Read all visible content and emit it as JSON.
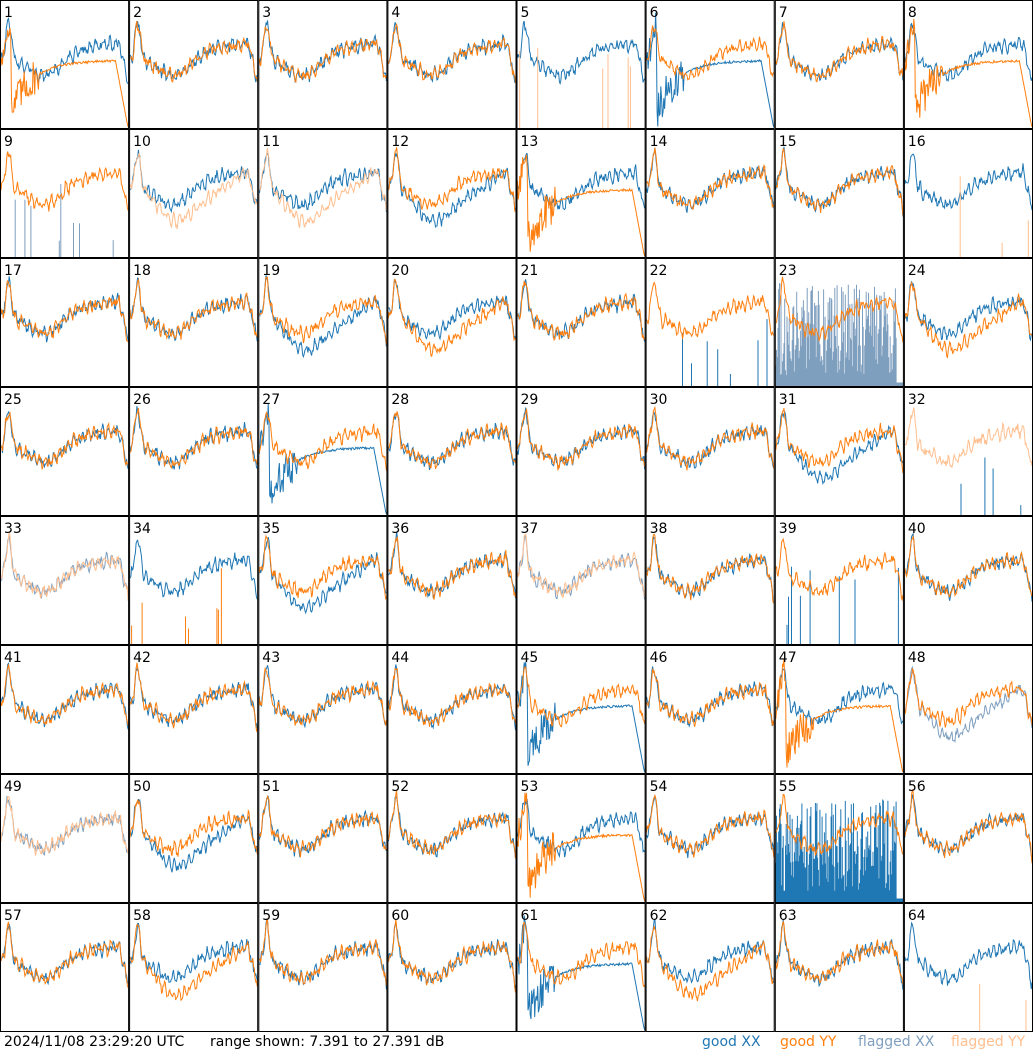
{
  "timestamp": "2024/11/08 23:29:20 UTC",
  "range_text": "range shown: 7.391 to 27.391 dB",
  "legend": {
    "good_xx": "good XX",
    "good_yy": "good YY",
    "flagged_xx": "flagged XX",
    "flagged_yy": "flagged YY"
  },
  "colors": {
    "good_xx": "#1f77b4",
    "good_yy": "#ff7f0e",
    "flagged_xx": "#7f9fbf",
    "flagged_yy": "#ffbf8f",
    "border": "#000000"
  },
  "chart_data": {
    "type": "line",
    "grid": "8x8 small-multiples",
    "ylim_db": [
      7.391,
      27.391
    ],
    "series_names": [
      "good XX",
      "good YY",
      "flagged XX",
      "flagged YY"
    ],
    "panels": [
      {
        "id": 1,
        "xx": "good",
        "yy": "good",
        "xx_shape": "normal",
        "yy_shape": "sag"
      },
      {
        "id": 2,
        "xx": "good",
        "yy": "good",
        "xx_shape": "normal",
        "yy_shape": "normal"
      },
      {
        "id": 3,
        "xx": "good",
        "yy": "good",
        "xx_shape": "normal",
        "yy_shape": "normal"
      },
      {
        "id": 4,
        "xx": "good",
        "yy": "good",
        "xx_shape": "normal",
        "yy_shape": "normal"
      },
      {
        "id": 5,
        "xx": "good",
        "yy": "flagged",
        "xx_shape": "normal",
        "yy_shape": "spikes"
      },
      {
        "id": 6,
        "xx": "good",
        "yy": "good",
        "xx_shape": "sag",
        "yy_shape": "normal"
      },
      {
        "id": 7,
        "xx": "good",
        "yy": "good",
        "xx_shape": "normal",
        "yy_shape": "normal"
      },
      {
        "id": 8,
        "xx": "good",
        "yy": "good",
        "xx_shape": "normal",
        "yy_shape": "sag"
      },
      {
        "id": 9,
        "xx": "flagged",
        "yy": "good",
        "xx_shape": "spikes",
        "yy_shape": "normal"
      },
      {
        "id": 10,
        "xx": "good",
        "yy": "flagged",
        "xx_shape": "normal",
        "yy_shape": "low"
      },
      {
        "id": 11,
        "xx": "good",
        "yy": "flagged",
        "xx_shape": "normal",
        "yy_shape": "low"
      },
      {
        "id": 12,
        "xx": "good",
        "yy": "good",
        "xx_shape": "low",
        "yy_shape": "normal"
      },
      {
        "id": 13,
        "xx": "good",
        "yy": "good",
        "xx_shape": "normal",
        "yy_shape": "sag"
      },
      {
        "id": 14,
        "xx": "good",
        "yy": "good",
        "xx_shape": "normal",
        "yy_shape": "normal"
      },
      {
        "id": 15,
        "xx": "good",
        "yy": "good",
        "xx_shape": "normal",
        "yy_shape": "normal"
      },
      {
        "id": 16,
        "xx": "good",
        "yy": "flagged",
        "xx_shape": "normal",
        "yy_shape": "spikes"
      },
      {
        "id": 17,
        "xx": "good",
        "yy": "good",
        "xx_shape": "normal",
        "yy_shape": "normal"
      },
      {
        "id": 18,
        "xx": "good",
        "yy": "good",
        "xx_shape": "normal",
        "yy_shape": "normal"
      },
      {
        "id": 19,
        "xx": "good",
        "yy": "good",
        "xx_shape": "low",
        "yy_shape": "normal"
      },
      {
        "id": 20,
        "xx": "good",
        "yy": "good",
        "xx_shape": "normal",
        "yy_shape": "low"
      },
      {
        "id": 21,
        "xx": "good",
        "yy": "good",
        "xx_shape": "normal",
        "yy_shape": "normal"
      },
      {
        "id": 22,
        "xx": "good",
        "yy": "good",
        "xx_shape": "spikes",
        "yy_shape": "normal"
      },
      {
        "id": 23,
        "xx": "flagged",
        "yy": "good",
        "xx_shape": "noisy",
        "yy_shape": "normal"
      },
      {
        "id": 24,
        "xx": "good",
        "yy": "good",
        "xx_shape": "normal",
        "yy_shape": "low"
      },
      {
        "id": 25,
        "xx": "good",
        "yy": "good",
        "xx_shape": "normal",
        "yy_shape": "normal"
      },
      {
        "id": 26,
        "xx": "good",
        "yy": "good",
        "xx_shape": "normal",
        "yy_shape": "normal"
      },
      {
        "id": 27,
        "xx": "good",
        "yy": "good",
        "xx_shape": "sag",
        "yy_shape": "normal"
      },
      {
        "id": 28,
        "xx": "good",
        "yy": "good",
        "xx_shape": "normal",
        "yy_shape": "normal"
      },
      {
        "id": 29,
        "xx": "good",
        "yy": "good",
        "xx_shape": "normal",
        "yy_shape": "normal"
      },
      {
        "id": 30,
        "xx": "good",
        "yy": "good",
        "xx_shape": "normal",
        "yy_shape": "normal"
      },
      {
        "id": 31,
        "xx": "good",
        "yy": "good",
        "xx_shape": "low",
        "yy_shape": "normal"
      },
      {
        "id": 32,
        "xx": "good",
        "yy": "flagged",
        "xx_shape": "spikes",
        "yy_shape": "normal"
      },
      {
        "id": 33,
        "xx": "flagged",
        "yy": "flagged",
        "xx_shape": "normal",
        "yy_shape": "normal"
      },
      {
        "id": 34,
        "xx": "good",
        "yy": "good",
        "xx_shape": "normal",
        "yy_shape": "spikes"
      },
      {
        "id": 35,
        "xx": "good",
        "yy": "good",
        "xx_shape": "low",
        "yy_shape": "normal"
      },
      {
        "id": 36,
        "xx": "good",
        "yy": "good",
        "xx_shape": "normal",
        "yy_shape": "normal"
      },
      {
        "id": 37,
        "xx": "flagged",
        "yy": "flagged",
        "xx_shape": "normal",
        "yy_shape": "normal"
      },
      {
        "id": 38,
        "xx": "good",
        "yy": "good",
        "xx_shape": "normal",
        "yy_shape": "normal"
      },
      {
        "id": 39,
        "xx": "good",
        "yy": "good",
        "xx_shape": "spikes",
        "yy_shape": "normal"
      },
      {
        "id": 40,
        "xx": "good",
        "yy": "good",
        "xx_shape": "normal",
        "yy_shape": "normal"
      },
      {
        "id": 41,
        "xx": "good",
        "yy": "good",
        "xx_shape": "normal",
        "yy_shape": "normal"
      },
      {
        "id": 42,
        "xx": "good",
        "yy": "good",
        "xx_shape": "normal",
        "yy_shape": "normal"
      },
      {
        "id": 43,
        "xx": "good",
        "yy": "good",
        "xx_shape": "normal",
        "yy_shape": "normal"
      },
      {
        "id": 44,
        "xx": "good",
        "yy": "good",
        "xx_shape": "normal",
        "yy_shape": "normal"
      },
      {
        "id": 45,
        "xx": "good",
        "yy": "good",
        "xx_shape": "sag",
        "yy_shape": "normal"
      },
      {
        "id": 46,
        "xx": "good",
        "yy": "good",
        "xx_shape": "normal",
        "yy_shape": "normal"
      },
      {
        "id": 47,
        "xx": "good",
        "yy": "good",
        "xx_shape": "normal",
        "yy_shape": "sag"
      },
      {
        "id": 48,
        "xx": "flagged",
        "yy": "good",
        "xx_shape": "low",
        "yy_shape": "normal"
      },
      {
        "id": 49,
        "xx": "flagged",
        "yy": "flagged",
        "xx_shape": "normal",
        "yy_shape": "normal"
      },
      {
        "id": 50,
        "xx": "good",
        "yy": "good",
        "xx_shape": "low",
        "yy_shape": "normal"
      },
      {
        "id": 51,
        "xx": "good",
        "yy": "good",
        "xx_shape": "normal",
        "yy_shape": "normal"
      },
      {
        "id": 52,
        "xx": "good",
        "yy": "good",
        "xx_shape": "normal",
        "yy_shape": "normal"
      },
      {
        "id": 53,
        "xx": "good",
        "yy": "good",
        "xx_shape": "normal",
        "yy_shape": "sag"
      },
      {
        "id": 54,
        "xx": "good",
        "yy": "good",
        "xx_shape": "normal",
        "yy_shape": "normal"
      },
      {
        "id": 55,
        "xx": "good",
        "yy": "good",
        "xx_shape": "noisy",
        "yy_shape": "normal"
      },
      {
        "id": 56,
        "xx": "good",
        "yy": "good",
        "xx_shape": "normal",
        "yy_shape": "normal"
      },
      {
        "id": 57,
        "xx": "good",
        "yy": "good",
        "xx_shape": "normal",
        "yy_shape": "normal"
      },
      {
        "id": 58,
        "xx": "good",
        "yy": "good",
        "xx_shape": "normal",
        "yy_shape": "low"
      },
      {
        "id": 59,
        "xx": "good",
        "yy": "good",
        "xx_shape": "normal",
        "yy_shape": "normal"
      },
      {
        "id": 60,
        "xx": "good",
        "yy": "good",
        "xx_shape": "normal",
        "yy_shape": "normal"
      },
      {
        "id": 61,
        "xx": "good",
        "yy": "good",
        "xx_shape": "sag",
        "yy_shape": "normal"
      },
      {
        "id": 62,
        "xx": "good",
        "yy": "good",
        "xx_shape": "normal",
        "yy_shape": "low"
      },
      {
        "id": 63,
        "xx": "good",
        "yy": "good",
        "xx_shape": "normal",
        "yy_shape": "normal"
      },
      {
        "id": 64,
        "xx": "good",
        "yy": "flagged",
        "xx_shape": "normal",
        "yy_shape": "spikes"
      }
    ]
  }
}
